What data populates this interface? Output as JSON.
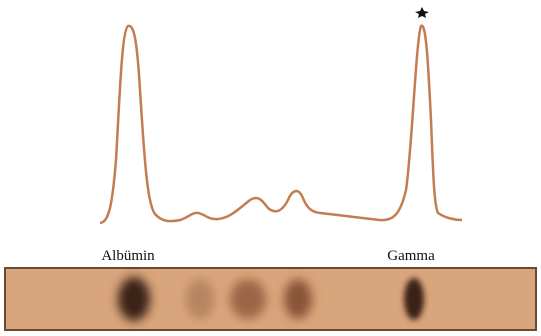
{
  "labels": [
    "Albümin",
    "Gamma"
  ]
}
